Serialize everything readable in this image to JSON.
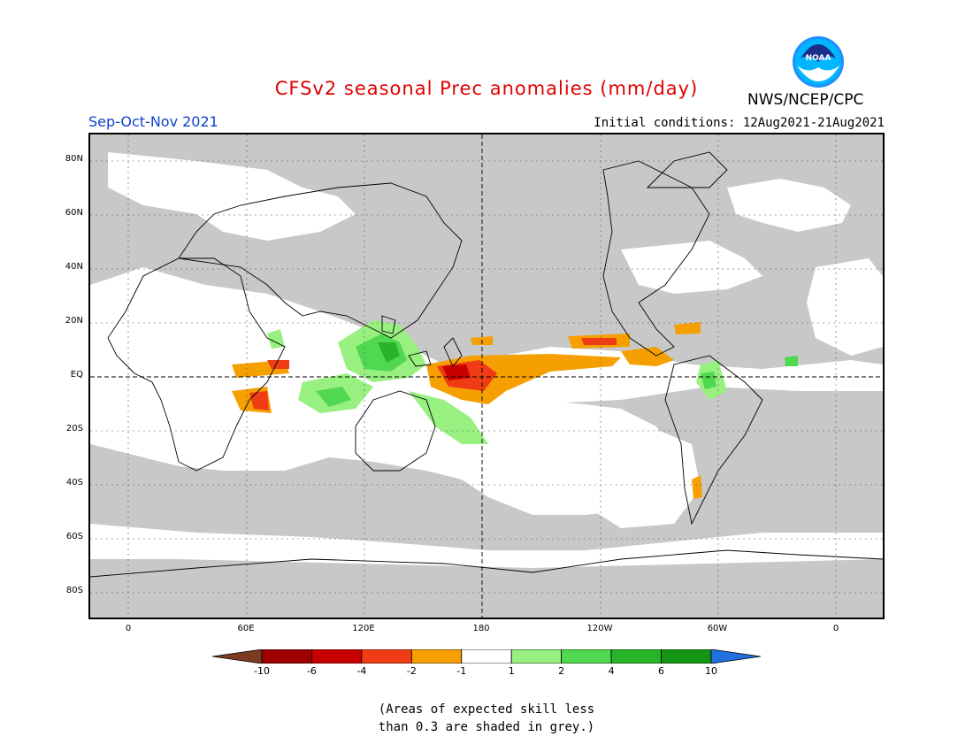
{
  "title": "CFSv2 seasonal Prec anomalies (mm/day)",
  "season": "Sep-Oct-Nov 2021",
  "initial_conditions": "Initial conditions: 12Aug2021-21Aug2021",
  "agency": "NWS/NCEP/CPC",
  "logo_text": "NOAA",
  "lat_labels": [
    "80N",
    "60N",
    "40N",
    "20N",
    "EQ",
    "20S",
    "40S",
    "60S",
    "80S"
  ],
  "lon_labels": [
    "0",
    "60E",
    "120E",
    "180",
    "120W",
    "60W",
    "0"
  ],
  "colorbar": {
    "labels": [
      "-10",
      "-6",
      "-4",
      "-2",
      "-1",
      "1",
      "2",
      "4",
      "6",
      "10"
    ],
    "colors": [
      "#7a3b1f",
      "#a00000",
      "#c80000",
      "#f03c14",
      "#f5a000",
      "#ffffff",
      "#98f080",
      "#50d850",
      "#28b428",
      "#149614",
      "#2070e0"
    ]
  },
  "note_lines": [
    "(Areas of expected skill less",
    "than 0.3 are shaded in grey.)"
  ],
  "colors": {
    "grey": "#c8c8c8",
    "white": "#ffffff",
    "red_dark": "#c80000",
    "red": "#f03c14",
    "orange": "#f5a000",
    "green_light": "#98f080",
    "green": "#50d850",
    "green_dark": "#28b428"
  }
}
